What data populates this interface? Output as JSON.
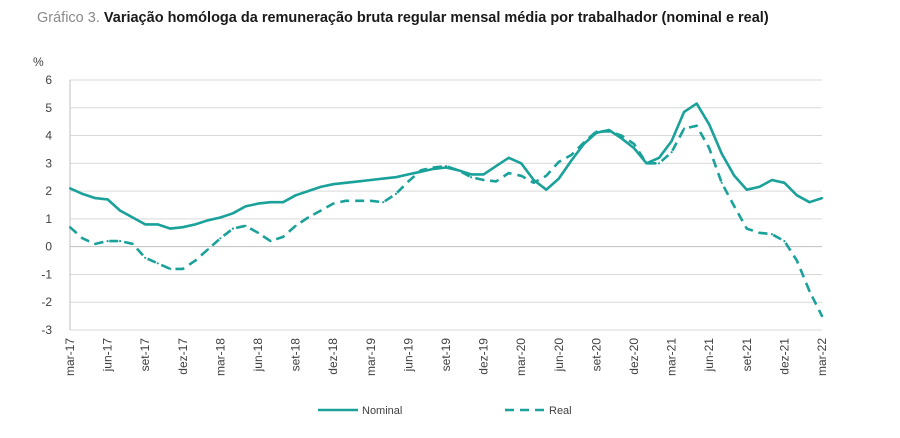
{
  "header": {
    "label": "Gráfico 3.",
    "title": "Variação homóloga da remuneração bruta regular mensal média por trabalhador (nominal e real)"
  },
  "colors": {
    "series": "#1aa19a",
    "axis": "#bfbfbf",
    "grid": "#d9d9d9",
    "text": "#404040"
  },
  "chart_data": {
    "type": "line",
    "ylabel": "%",
    "ylim": [
      -3,
      6
    ],
    "yticks": [
      "6",
      "5",
      "4",
      "3",
      "2",
      "1",
      "0",
      "-1",
      "-2",
      "-3"
    ],
    "grid": true,
    "legend_position": "bottom",
    "x": [
      "mar-17",
      "abr-17",
      "mai-17",
      "jun-17",
      "jul-17",
      "ago-17",
      "set-17",
      "out-17",
      "nov-17",
      "dez-17",
      "jan-18",
      "fev-18",
      "mar-18",
      "abr-18",
      "mai-18",
      "jun-18",
      "jul-18",
      "ago-18",
      "set-18",
      "out-18",
      "nov-18",
      "dez-18",
      "jan-19",
      "fev-19",
      "mar-19",
      "abr-19",
      "mai-19",
      "jun-19",
      "jul-19",
      "ago-19",
      "set-19",
      "out-19",
      "nov-19",
      "dez-19",
      "jan-20",
      "fev-20",
      "mar-20",
      "abr-20",
      "mai-20",
      "jun-20",
      "jul-20",
      "ago-20",
      "set-20",
      "out-20",
      "nov-20",
      "dez-20",
      "jan-21",
      "fev-21",
      "mar-21",
      "abr-21",
      "mai-21",
      "jun-21",
      "jul-21",
      "ago-21",
      "set-21",
      "out-21",
      "nov-21",
      "dez-21",
      "jan-22",
      "fev-22",
      "mar-22"
    ],
    "xticks": [
      "mar-17",
      "jun-17",
      "set-17",
      "dez-17",
      "mar-18",
      "jun-18",
      "set-18",
      "dez-18",
      "mar-19",
      "jun-19",
      "set-19",
      "dez-19",
      "mar-20",
      "jun-20",
      "set-20",
      "dez-20",
      "mar-21",
      "jun-21",
      "set-21",
      "dez-21",
      "mar-22"
    ],
    "series": [
      {
        "name": "Nominal",
        "style": "solid",
        "values": [
          2.1,
          1.9,
          1.75,
          1.7,
          1.3,
          1.05,
          0.8,
          0.8,
          0.65,
          0.7,
          0.8,
          0.95,
          1.05,
          1.2,
          1.45,
          1.55,
          1.6,
          1.6,
          1.85,
          2.0,
          2.15,
          2.25,
          2.3,
          2.35,
          2.4,
          2.45,
          2.5,
          2.6,
          2.7,
          2.8,
          2.85,
          2.75,
          2.6,
          2.6,
          2.9,
          3.2,
          3.0,
          2.4,
          2.05,
          2.45,
          3.1,
          3.7,
          4.1,
          4.2,
          3.9,
          3.55,
          3.0,
          3.2,
          3.8,
          4.85,
          5.15,
          4.4,
          3.35,
          2.55,
          2.05,
          2.15,
          2.4,
          2.3,
          1.85,
          1.6,
          1.75
        ]
      },
      {
        "name": "Real",
        "style": "dashed",
        "values": [
          0.7,
          0.3,
          0.1,
          0.2,
          0.2,
          0.1,
          -0.4,
          -0.6,
          -0.8,
          -0.8,
          -0.5,
          -0.1,
          0.3,
          0.65,
          0.75,
          0.5,
          0.2,
          0.35,
          0.75,
          1.05,
          1.3,
          1.55,
          1.65,
          1.65,
          1.65,
          1.6,
          1.9,
          2.35,
          2.75,
          2.85,
          2.9,
          2.75,
          2.5,
          2.4,
          2.35,
          2.65,
          2.55,
          2.3,
          2.55,
          3.05,
          3.3,
          3.75,
          4.15,
          4.15,
          4.0,
          3.7,
          3.0,
          3.0,
          3.4,
          4.25,
          4.35,
          3.55,
          2.3,
          1.45,
          0.65,
          0.5,
          0.45,
          0.2,
          -0.5,
          -1.6,
          -2.5
        ]
      }
    ]
  }
}
